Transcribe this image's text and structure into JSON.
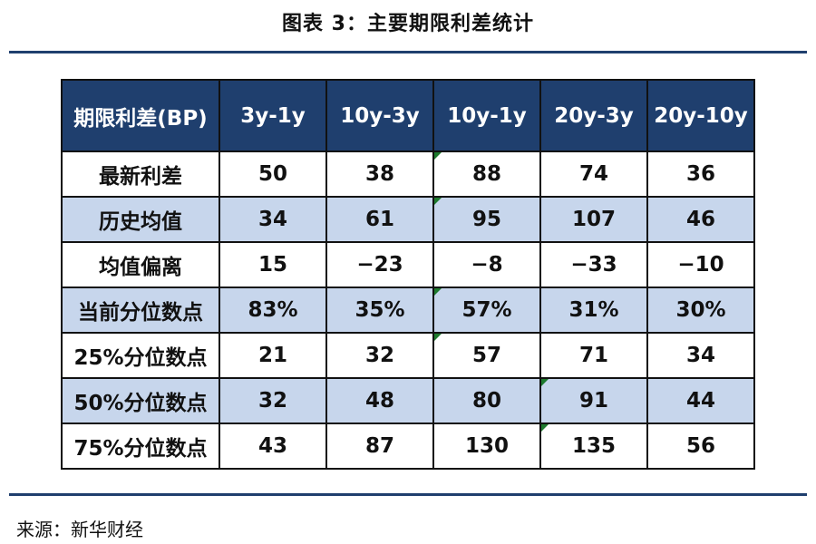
{
  "title": "图表 3：主要期限利差统计",
  "table": {
    "header": [
      "期限利差(BP)",
      "3y-1y",
      "10y-3y",
      "10y-1y",
      "20y-3y",
      "20y-10y"
    ],
    "rows": [
      {
        "label": "最新利差",
        "values": [
          "50",
          "38",
          "88",
          "74",
          "36"
        ]
      },
      {
        "label": "历史均值",
        "values": [
          "34",
          "61",
          "95",
          "107",
          "46"
        ]
      },
      {
        "label": "均值偏离",
        "values": [
          "15",
          "−23",
          "−8",
          "−33",
          "−10"
        ]
      },
      {
        "label": "当前分位数点",
        "values": [
          "83%",
          "35%",
          "57%",
          "31%",
          "30%"
        ]
      },
      {
        "label": "25%分位数点",
        "values": [
          "21",
          "32",
          "57",
          "71",
          "34"
        ]
      },
      {
        "label": "50%分位数点",
        "values": [
          "32",
          "48",
          "80",
          "91",
          "44"
        ]
      },
      {
        "label": "75%分位数点",
        "values": [
          "43",
          "87",
          "130",
          "135",
          "56"
        ]
      }
    ]
  },
  "source": "来源：新华财经",
  "colors": {
    "header_bg": "#1f3f6e",
    "shade": "#c7d6ec",
    "rule": "#1f3f6e",
    "marker": "#1e7a2e"
  }
}
